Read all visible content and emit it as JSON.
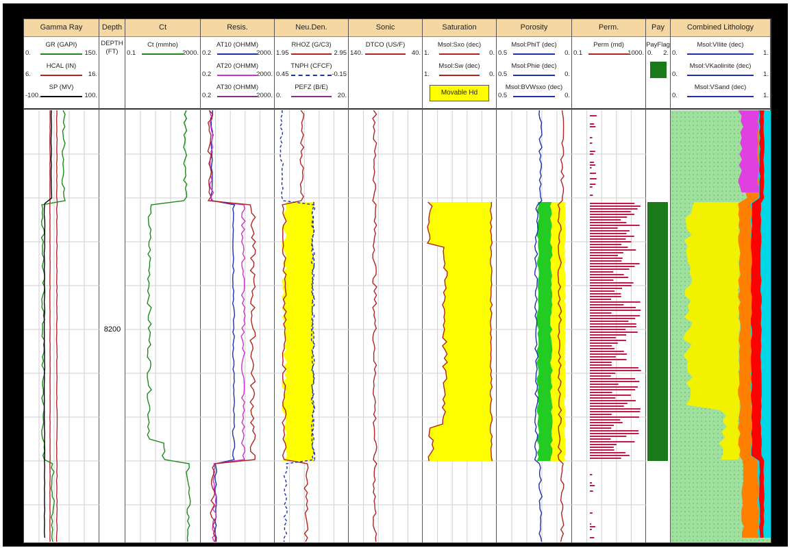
{
  "depth_label": "8200",
  "tracks": [
    {
      "key": "gr",
      "title": "Gamma Ray",
      "curves": [
        {
          "name": "GR (GAPI)",
          "min": "0.",
          "max": "150.",
          "color": "#1a8a1a",
          "dash": false
        },
        {
          "name": "HCAL (IN)",
          "min": "6.",
          "max": "16.",
          "color": "#b22222",
          "dash": false
        },
        {
          "name": "SP (MV)",
          "min": "-100.",
          "max": "100.",
          "color": "#000000",
          "dash": false
        }
      ]
    },
    {
      "key": "depth",
      "title": "Depth",
      "curves": [],
      "depth_header": [
        "DEPTH",
        "(FT)"
      ]
    },
    {
      "key": "ct",
      "title": "Ct",
      "curves": [
        {
          "name": "Ct (mmho)",
          "min": "0.1",
          "max": "2000.",
          "color": "#1a8a1a",
          "dash": false
        }
      ]
    },
    {
      "key": "res",
      "title": "Resis.",
      "curves": [
        {
          "name": "AT10 (OHMM)",
          "min": "0.2",
          "max": "2000.",
          "color": "#1c2fb0",
          "dash": false
        },
        {
          "name": "AT20 (OHMM)",
          "min": "0.2",
          "max": "2000.",
          "color": "#cc33cc",
          "dash": false
        },
        {
          "name": "AT30 (OHMM)",
          "min": "0.2",
          "max": "2000.",
          "color": "#8b2a8b",
          "dash": false
        }
      ]
    },
    {
      "key": "nd",
      "title": "Neu.Den.",
      "curves": [
        {
          "name": "RHOZ (G/C3)",
          "min": "1.95",
          "max": "2.95",
          "color": "#b22222",
          "dash": false
        },
        {
          "name": "TNPH (CFCF)",
          "min": "0.45",
          "max": "-0.15",
          "color": "#1c2fb0",
          "dash": true
        },
        {
          "name": "PEFZ (B/E)",
          "min": "0.",
          "max": "20.",
          "color": "#8b2a8b",
          "dash": false
        }
      ]
    },
    {
      "key": "sonic",
      "title": "Sonic",
      "curves": [
        {
          "name": "DTCO (US/F)",
          "min": "140.",
          "max": "40.",
          "color": "#b22222",
          "dash": false
        }
      ]
    },
    {
      "key": "sat",
      "title": "Saturation",
      "curves": [
        {
          "name": "Msol:Sxo (dec)",
          "min": "1.",
          "max": "0.",
          "color": "#b22222",
          "dash": false
        },
        {
          "name": "Msol:Sw (dec)",
          "min": "1.",
          "max": "0.",
          "color": "#b22222",
          "dash": false
        }
      ],
      "fill_label": "Movable Hd"
    },
    {
      "key": "por",
      "title": "Porosity",
      "curves": [
        {
          "name": "Msol:PhiT (dec)",
          "min": "0.5",
          "max": "0.",
          "color": "#1c2fb0",
          "dash": false
        },
        {
          "name": "Msol:Phie (dec)",
          "min": "0.5",
          "max": "0.",
          "color": "#1c2fb0",
          "dash": false
        },
        {
          "name": "Msol:BVWsxo (dec)",
          "min": "0.5",
          "max": "0.",
          "color": "#1c2fb0",
          "dash": false
        }
      ]
    },
    {
      "key": "perm",
      "title": "Perm.",
      "curves": [
        {
          "name": "Perm (md)",
          "min": "0.1",
          "max": "1000.",
          "color": "#b22222",
          "dash": false
        }
      ]
    },
    {
      "key": "pay",
      "title": "Pay",
      "curves": [
        {
          "name": "PayFlag",
          "min": "0.",
          "max": "2.",
          "color": "#1a8a1a",
          "dash": false
        }
      ]
    },
    {
      "key": "lith",
      "title": "Combined Lithology",
      "curves": [
        {
          "name": "Msol:VIlite (dec)",
          "min": "0.",
          "max": "1.",
          "color": "#1c2fb0",
          "dash": false
        },
        {
          "name": "Msol:VKaolinite (dec)",
          "min": "0.",
          "max": "1.",
          "color": "#1c2fb0",
          "dash": false
        },
        {
          "name": "Msol:VSand (dec)",
          "min": "0.",
          "max": "1.",
          "color": "#1c2fb0",
          "dash": false
        }
      ]
    }
  ],
  "chart_data": {
    "type": "line",
    "title": "",
    "depth_unit": "FT",
    "depth_tick_labels": [
      "8200"
    ],
    "pay_zone": "PayFlag present across the reservoir interval above and below 8200 ft",
    "colors": {
      "header": "#f5d7a3",
      "movable_hc": "#ffff00",
      "bvw": "#22cc22",
      "pay": "#1a7a1a",
      "illite": "#00d8e8",
      "kaolinite": "#ff0000",
      "sand": "#f2f200",
      "shale_green": "#9fe09f",
      "orange": "#ff7f00",
      "magenta": "#e040e0"
    }
  }
}
